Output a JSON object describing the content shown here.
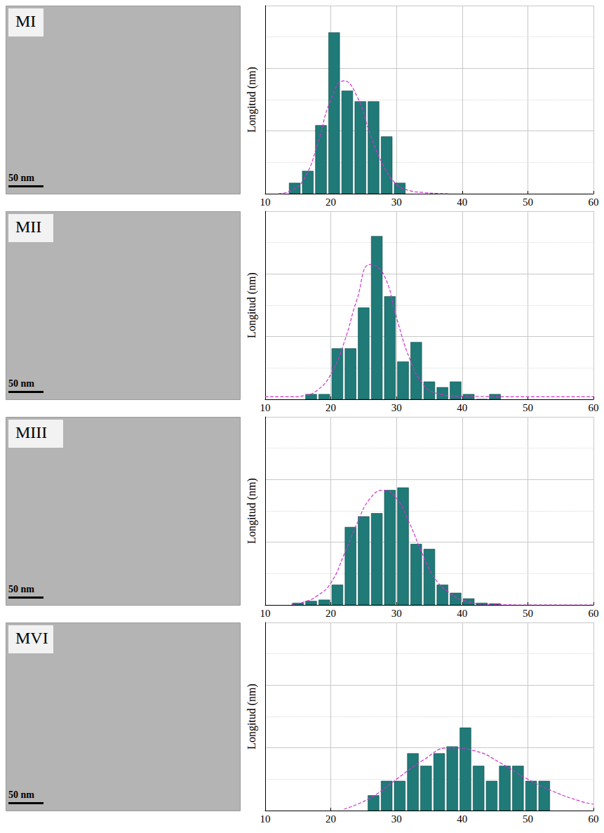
{
  "chart_data": [
    {
      "type": "histogram",
      "title": "MI",
      "annotations": [
        "50 nm"
      ],
      "ylabel": "Longitud (nm)",
      "bins": [
        13.5,
        15.5,
        17.5,
        19.5,
        21.5,
        23.5,
        25.5,
        27.5,
        29.5,
        31.5
      ],
      "values": [
        1.7,
        3.6,
        10.9,
        25.7,
        16.4,
        14.7,
        14.7,
        9.1,
        1.7
      ],
      "color": "#1f7a78",
      "fit": {
        "x": [
          12,
          14,
          16,
          18,
          20,
          22,
          24,
          26,
          28,
          30,
          32,
          34,
          36,
          38
        ],
        "values": [
          0,
          0.5,
          2.5,
          8,
          15,
          18,
          15.5,
          9.5,
          4.5,
          1.5,
          0.5,
          0.2,
          0.05,
          0
        ],
        "color": "#cc33cc",
        "line_style": "dashed"
      },
      "xlim": [
        10,
        60
      ],
      "xticks": [
        10,
        20,
        30,
        40,
        50,
        60
      ],
      "ylim": [
        0,
        30
      ],
      "yticks": [
        0,
        10,
        20,
        30
      ],
      "grid": true,
      "tick_labels": "x"
    },
    {
      "type": "histogram",
      "title": "MII",
      "annotations": [
        "50 nm"
      ],
      "ylabel": "Longitud (nm)",
      "bins": [
        16,
        18,
        20,
        22,
        24,
        26,
        28,
        30,
        32,
        34,
        36,
        38,
        40,
        42,
        44,
        46
      ],
      "values": [
        0.8,
        0.8,
        8.1,
        8.1,
        14.6,
        26,
        16.4,
        6,
        9.1,
        2.8,
        1.9,
        2.8,
        0.8,
        0,
        0.8
      ],
      "color": "#1f7a78",
      "fit": {
        "x": [
          10,
          14,
          16,
          18,
          20,
          22,
          24,
          26,
          28,
          30,
          32,
          34,
          36,
          40,
          50,
          60
        ],
        "values": [
          0.4,
          0.4,
          0.6,
          1.5,
          4,
          9,
          16,
          21.5,
          20,
          13,
          6.5,
          2.5,
          1,
          0.5,
          0.4,
          0.4
        ],
        "color": "#cc33cc",
        "line_style": "dashed"
      },
      "xlim": [
        10,
        60
      ],
      "xticks": [
        10,
        20,
        30,
        40,
        50,
        60
      ],
      "ylim": [
        0,
        30
      ],
      "yticks": [
        0,
        10,
        20,
        30
      ],
      "grid": true,
      "tick_labels": "x"
    },
    {
      "type": "histogram",
      "title": "MIII",
      "annotations": [
        "50 nm"
      ],
      "ylabel": "Longitud (nm)",
      "bins": [
        14,
        16,
        18,
        20,
        22,
        24,
        26,
        28,
        30,
        32,
        34,
        36,
        38,
        40,
        42,
        44,
        46
      ],
      "values": [
        0.3,
        0.6,
        0.8,
        3.2,
        12.4,
        14.1,
        14.6,
        18.3,
        18.7,
        9.7,
        8.9,
        3.2,
        1.9,
        1,
        0.3,
        0.2
      ],
      "color": "#1f7a78",
      "fit": {
        "x": [
          14,
          16,
          18,
          20,
          22,
          24,
          26,
          28,
          30,
          32,
          34,
          36,
          38,
          40,
          44,
          50,
          60
        ],
        "values": [
          0.1,
          0.5,
          1.5,
          3.5,
          8,
          13,
          17,
          18.3,
          17,
          13,
          8,
          4,
          2,
          0.8,
          0.1,
          0,
          0
        ],
        "color": "#cc33cc",
        "line_style": "dashed"
      },
      "xlim": [
        10,
        60
      ],
      "xticks": [
        10,
        20,
        30,
        40,
        50,
        60
      ],
      "ylim": [
        0,
        30
      ],
      "yticks": [
        0,
        10,
        20,
        30
      ],
      "grid": true,
      "tick_labels": "x"
    },
    {
      "type": "histogram",
      "title": "MVI",
      "annotations": [
        "50 nm"
      ],
      "ylabel": "Longitud (nm)",
      "bins": [
        25.5,
        27.5,
        29.5,
        31.5,
        33.5,
        35.5,
        37.5,
        39.5,
        41.5,
        43.5,
        45.5,
        47.5,
        49.5,
        51.5,
        53.5
      ],
      "values": [
        2.4,
        4.7,
        4.7,
        9.1,
        7.1,
        9.1,
        10.2,
        13.2,
        7.1,
        4.7,
        7.1,
        7.1,
        4.7,
        4.7
      ],
      "color": "#1f7a78",
      "fit": {
        "x": [
          22,
          26,
          30,
          34,
          38,
          42,
          46,
          50,
          54,
          58,
          60
        ],
        "values": [
          0.2,
          2,
          5,
          8,
          10,
          9.5,
          7.5,
          5,
          3,
          1.5,
          1
        ],
        "color": "#cc33cc",
        "line_style": "dashed"
      },
      "xlim": [
        10,
        60
      ],
      "xticks": [
        10,
        20,
        30,
        40,
        50,
        60
      ],
      "ylim": [
        0,
        30
      ],
      "yticks": [
        0,
        10,
        20,
        30
      ],
      "grid": true,
      "tick_labels": "x"
    }
  ]
}
